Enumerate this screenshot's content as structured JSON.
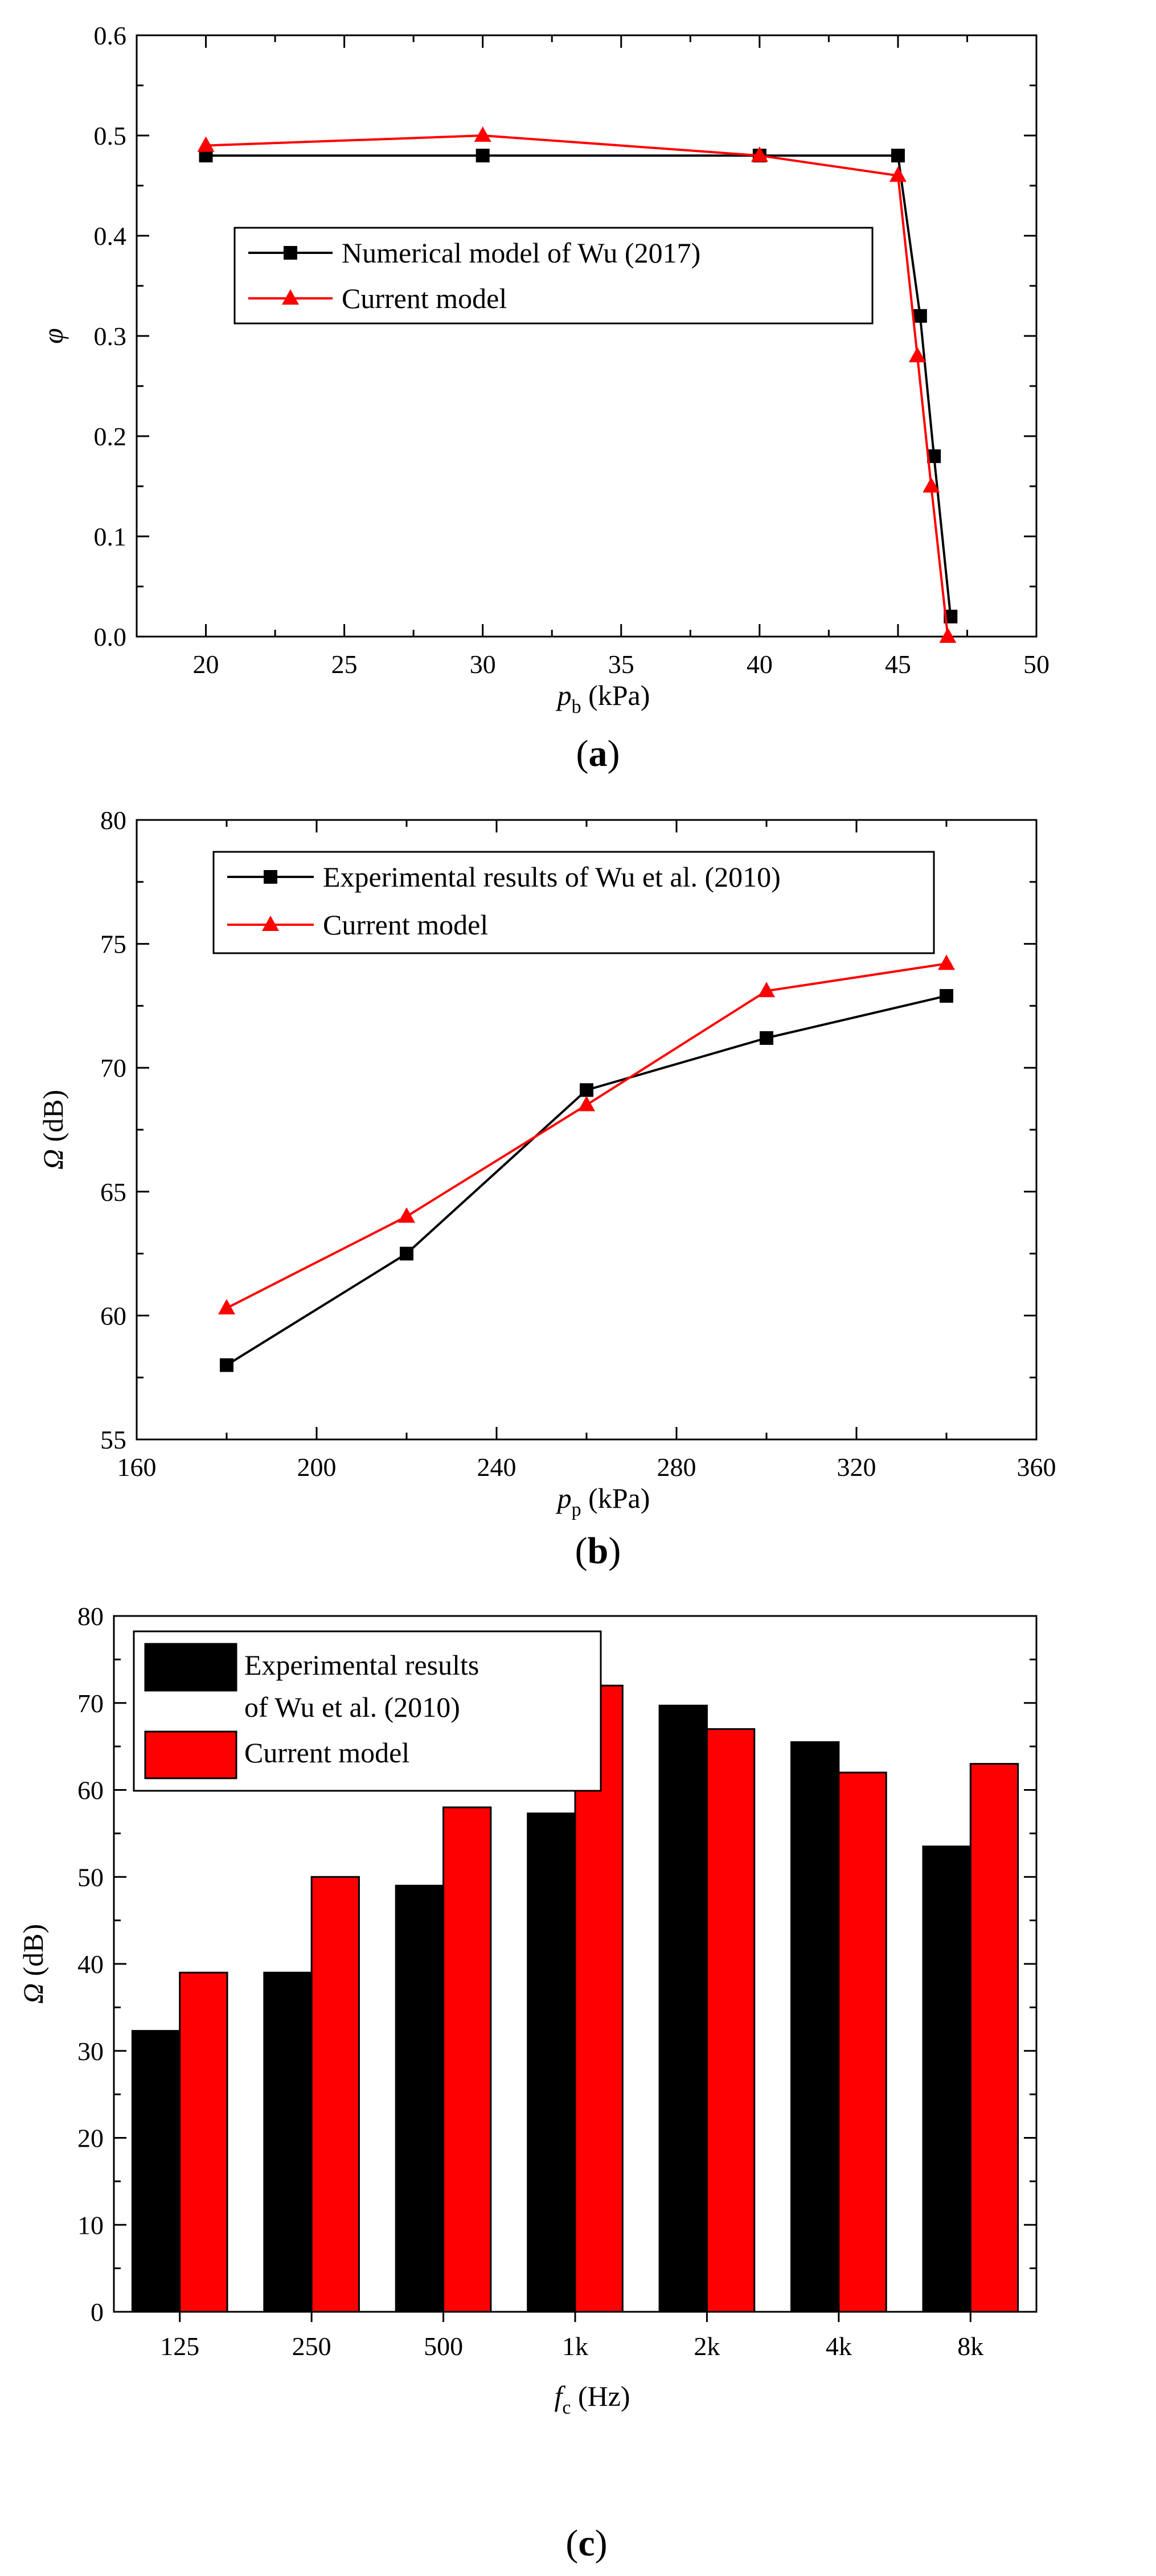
{
  "chart_data": [
    {
      "type": "line",
      "panel_label": "a",
      "xlabel_var": "p",
      "xlabel_sub": "b",
      "xlabel_unit": " (kPa)",
      "ylabel": "φ",
      "xlim": [
        17.5,
        50
      ],
      "ylim": [
        0,
        0.6
      ],
      "xticks": [
        20,
        25,
        30,
        35,
        40,
        45,
        50
      ],
      "yticks": [
        0.0,
        0.1,
        0.2,
        0.3,
        0.4,
        0.5,
        0.6
      ],
      "legend_position": "center-right",
      "series": [
        {
          "name": "Numerical model of Wu (2017)",
          "color": "#000000",
          "marker": "square",
          "x": [
            20,
            30,
            40,
            45,
            45.8,
            46.3,
            46.9
          ],
          "y": [
            0.48,
            0.48,
            0.48,
            0.48,
            0.32,
            0.18,
            0.02
          ]
        },
        {
          "name": "Current model",
          "color": "#ff0000",
          "marker": "triangle",
          "x": [
            20,
            30,
            40,
            45,
            45.7,
            46.2,
            46.8
          ],
          "y": [
            0.49,
            0.5,
            0.48,
            0.46,
            0.28,
            0.15,
            0.0
          ]
        }
      ]
    },
    {
      "type": "line",
      "panel_label": "b",
      "xlabel_var": "p",
      "xlabel_sub": "p",
      "xlabel_unit": " (kPa)",
      "ylabel": "Ω (dB)",
      "xlim": [
        160,
        360
      ],
      "ylim": [
        55,
        80
      ],
      "xticks": [
        160,
        200,
        240,
        280,
        320,
        360
      ],
      "yticks": [
        55,
        60,
        65,
        70,
        75,
        80
      ],
      "legend_position": "top-left",
      "series": [
        {
          "name": "Experimental results of Wu et al. (2010)",
          "color": "#000000",
          "marker": "square",
          "x": [
            180,
            220,
            260,
            300,
            340
          ],
          "y": [
            58.0,
            62.5,
            69.1,
            71.2,
            72.9
          ]
        },
        {
          "name": "Current model",
          "color": "#ff0000",
          "marker": "triangle",
          "x": [
            180,
            220,
            260,
            300,
            340
          ],
          "y": [
            60.3,
            64.0,
            68.5,
            73.1,
            74.2
          ]
        }
      ]
    },
    {
      "type": "bar",
      "panel_label": "c",
      "xlabel_var": "f",
      "xlabel_sub": "c",
      "xlabel_unit": " (Hz)",
      "ylabel": "Ω (dB)",
      "ylim": [
        0,
        80
      ],
      "yticks": [
        0,
        10,
        20,
        30,
        40,
        50,
        60,
        70,
        80
      ],
      "categories": [
        "125",
        "250",
        "500",
        "1k",
        "2k",
        "4k",
        "8k"
      ],
      "legend_position": "top-left",
      "series": [
        {
          "name_lines": [
            "Experimental results",
            "of Wu et al. (2010)"
          ],
          "color": "#000000",
          "values": [
            32.3,
            39.0,
            49.0,
            57.3,
            69.7,
            65.5,
            53.5
          ]
        },
        {
          "name_lines": [
            "Current model"
          ],
          "color": "#ff0000",
          "values": [
            39.0,
            50.0,
            58.0,
            72.0,
            67.0,
            62.0,
            63.0
          ]
        }
      ]
    }
  ]
}
